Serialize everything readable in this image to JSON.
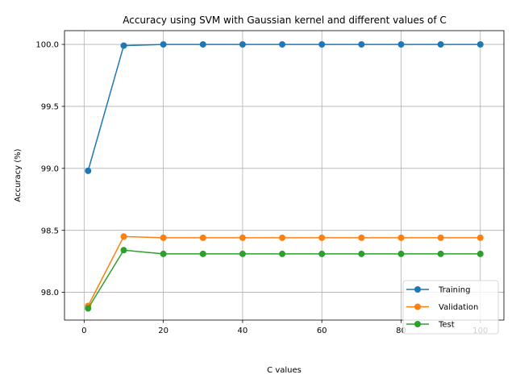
{
  "chart_data": {
    "type": "line",
    "title": "Accuracy using SVM with Gaussian kernel and different values of C",
    "xlabel": "C values",
    "ylabel": "Accuracy (%)",
    "x": [
      1,
      10,
      20,
      30,
      40,
      50,
      60,
      70,
      80,
      90,
      100
    ],
    "xlim": [
      -4.95,
      105.95
    ],
    "ylim": [
      97.776,
      100.111
    ],
    "xticks": [
      0,
      20,
      40,
      60,
      80,
      100
    ],
    "yticks": [
      98.0,
      98.5,
      99.0,
      99.5,
      100.0
    ],
    "xtick_labels": [
      "0",
      "20",
      "40",
      "60",
      "80",
      "100"
    ],
    "ytick_labels": [
      "98.0",
      "98.5",
      "99.0",
      "99.5",
      "100.0"
    ],
    "grid": true,
    "legend_position": "lower-right",
    "series": [
      {
        "name": "Training",
        "color": "#1f77b4",
        "values": [
          98.98,
          99.99,
          100.0,
          100.0,
          100.0,
          100.0,
          100.0,
          100.0,
          100.0,
          100.0,
          100.0
        ]
      },
      {
        "name": "Validation",
        "color": "#ff7f0e",
        "values": [
          97.89,
          98.45,
          98.44,
          98.44,
          98.44,
          98.44,
          98.44,
          98.44,
          98.44,
          98.44,
          98.44
        ]
      },
      {
        "name": "Test",
        "color": "#2ca02c",
        "values": [
          97.87,
          98.34,
          98.31,
          98.31,
          98.31,
          98.31,
          98.31,
          98.31,
          98.31,
          98.31,
          98.31
        ]
      }
    ]
  }
}
